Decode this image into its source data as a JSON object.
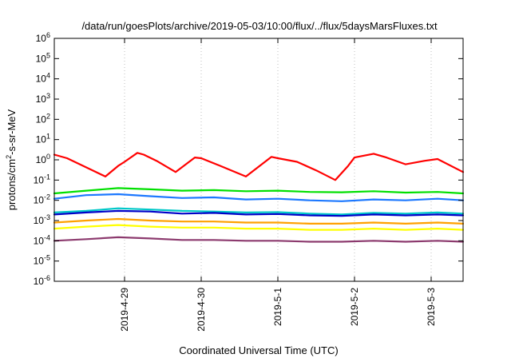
{
  "chart_data": {
    "type": "line",
    "title": "/data/run/goesPlots/archive/2019-05-03/10:00/flux/../flux/5daysMarsFluxes.txt",
    "xlabel": "Coordinated Universal Time (UTC)",
    "ylabel": "protons/cm2-s-sr-MeV",
    "ylabel_parts": [
      "protons/cm",
      "2",
      "-s-sr-MeV"
    ],
    "yscale": "log",
    "ylim": [
      1e-06,
      1000000.0
    ],
    "yticks": [
      {
        "base": "10",
        "exp": "6"
      },
      {
        "base": "10",
        "exp": "5"
      },
      {
        "base": "10",
        "exp": "4"
      },
      {
        "base": "10",
        "exp": "3"
      },
      {
        "base": "10",
        "exp": "2"
      },
      {
        "base": "10",
        "exp": "1"
      },
      {
        "base": "10",
        "exp": "0"
      },
      {
        "base": "10",
        "exp": "-1"
      },
      {
        "base": "10",
        "exp": "-2"
      },
      {
        "base": "10",
        "exp": "-3"
      },
      {
        "base": "10",
        "exp": "-4"
      },
      {
        "base": "10",
        "exp": "-5"
      },
      {
        "base": "10",
        "exp": "-6"
      }
    ],
    "xlim": [
      "2019-04-28 02:00",
      "2019-05-03 10:00"
    ],
    "xticks": [
      "2019-4-29",
      "2019-4-30",
      "2019-5-1",
      "2019-5-2",
      "2019-5-3"
    ],
    "grid": true,
    "legend": "none",
    "series": [
      {
        "color": "#ff0000",
        "x": [
          "2019-04-28 02:00",
          "2019-04-28 06:00",
          "2019-04-28 10:00",
          "2019-04-28 14:00",
          "2019-04-28 18:00",
          "2019-04-28 22:00",
          "2019-04-29 00:00",
          "2019-04-29 04:00",
          "2019-04-29 06:00",
          "2019-04-29 10:00",
          "2019-04-29 16:00",
          "2019-04-29 22:00",
          "2019-04-30 00:00",
          "2019-04-30 06:00",
          "2019-04-30 14:00",
          "2019-04-30 22:00",
          "2019-05-01 00:00",
          "2019-05-01 06:00",
          "2019-05-01 12:00",
          "2019-05-01 18:00",
          "2019-05-01 22:00",
          "2019-05-02 00:00",
          "2019-05-02 06:00",
          "2019-05-02 10:00",
          "2019-05-02 16:00",
          "2019-05-02 22:00",
          "2019-05-03 02:00",
          "2019-05-03 10:00"
        ],
        "values": [
          1.8,
          1.2,
          0.6,
          0.3,
          0.15,
          0.5,
          0.8,
          2.2,
          1.8,
          0.9,
          0.25,
          1.3,
          1.2,
          0.5,
          0.15,
          1.4,
          1.2,
          0.8,
          0.3,
          0.1,
          0.5,
          1.3,
          2.0,
          1.3,
          0.6,
          0.9,
          1.1,
          0.25
        ]
      },
      {
        "color": "#00e000",
        "x": [
          "2019-04-28 02:00",
          "2019-04-28 12:00",
          "2019-04-28 22:00",
          "2019-04-29 08:00",
          "2019-04-29 18:00",
          "2019-04-30 04:00",
          "2019-04-30 14:00",
          "2019-05-01 00:00",
          "2019-05-01 10:00",
          "2019-05-01 20:00",
          "2019-05-02 06:00",
          "2019-05-02 16:00",
          "2019-05-03 02:00",
          "2019-05-03 10:00"
        ],
        "values": [
          0.022,
          0.03,
          0.04,
          0.035,
          0.03,
          0.032,
          0.028,
          0.03,
          0.026,
          0.025,
          0.028,
          0.024,
          0.026,
          0.022
        ]
      },
      {
        "color": "#1c78ff",
        "x": [
          "2019-04-28 02:00",
          "2019-04-28 12:00",
          "2019-04-28 22:00",
          "2019-04-29 08:00",
          "2019-04-29 18:00",
          "2019-04-30 04:00",
          "2019-04-30 14:00",
          "2019-05-01 00:00",
          "2019-05-01 10:00",
          "2019-05-01 20:00",
          "2019-05-02 06:00",
          "2019-05-02 16:00",
          "2019-05-03 02:00",
          "2019-05-03 10:00"
        ],
        "values": [
          0.012,
          0.018,
          0.02,
          0.016,
          0.013,
          0.014,
          0.011,
          0.012,
          0.01,
          0.009,
          0.011,
          0.01,
          0.012,
          0.01
        ]
      },
      {
        "color": "#00c8c8",
        "x": [
          "2019-04-28 02:00",
          "2019-04-28 12:00",
          "2019-04-28 22:00",
          "2019-04-29 08:00",
          "2019-04-29 18:00",
          "2019-04-30 04:00",
          "2019-04-30 14:00",
          "2019-05-01 00:00",
          "2019-05-01 10:00",
          "2019-05-01 20:00",
          "2019-05-02 06:00",
          "2019-05-02 16:00",
          "2019-05-03 02:00",
          "2019-05-03 10:00"
        ],
        "values": [
          0.0025,
          0.003,
          0.004,
          0.0035,
          0.003,
          0.0028,
          0.0025,
          0.0026,
          0.0022,
          0.002,
          0.0024,
          0.0022,
          0.0025,
          0.0022
        ]
      },
      {
        "color": "#0000c8",
        "x": [
          "2019-04-28 02:00",
          "2019-04-28 12:00",
          "2019-04-28 22:00",
          "2019-04-29 08:00",
          "2019-04-29 18:00",
          "2019-04-30 04:00",
          "2019-04-30 14:00",
          "2019-05-01 00:00",
          "2019-05-01 10:00",
          "2019-05-01 20:00",
          "2019-05-02 06:00",
          "2019-05-02 16:00",
          "2019-05-03 02:00",
          "2019-05-03 10:00"
        ],
        "values": [
          0.002,
          0.0025,
          0.003,
          0.0028,
          0.0022,
          0.0024,
          0.002,
          0.0021,
          0.0018,
          0.0017,
          0.002,
          0.0018,
          0.002,
          0.0018
        ]
      },
      {
        "color": "#ffa000",
        "x": [
          "2019-04-28 02:00",
          "2019-04-28 12:00",
          "2019-04-28 22:00",
          "2019-04-29 08:00",
          "2019-04-29 18:00",
          "2019-04-30 04:00",
          "2019-04-30 14:00",
          "2019-05-01 00:00",
          "2019-05-01 10:00",
          "2019-05-01 20:00",
          "2019-05-02 06:00",
          "2019-05-02 16:00",
          "2019-05-03 02:00",
          "2019-05-03 10:00"
        ],
        "values": [
          0.0008,
          0.001,
          0.0012,
          0.001,
          0.0009,
          0.0009,
          0.0008,
          0.0008,
          0.0007,
          0.0007,
          0.0008,
          0.0007,
          0.0008,
          0.0007
        ]
      },
      {
        "color": "#ffff00",
        "x": [
          "2019-04-28 02:00",
          "2019-04-28 12:00",
          "2019-04-28 22:00",
          "2019-04-29 08:00",
          "2019-04-29 18:00",
          "2019-04-30 04:00",
          "2019-04-30 14:00",
          "2019-05-01 00:00",
          "2019-05-01 10:00",
          "2019-05-01 20:00",
          "2019-05-02 06:00",
          "2019-05-02 16:00",
          "2019-05-03 02:00",
          "2019-05-03 10:00"
        ],
        "values": [
          0.0004,
          0.0005,
          0.0006,
          0.0005,
          0.00045,
          0.00045,
          0.0004,
          0.0004,
          0.00035,
          0.00035,
          0.0004,
          0.00035,
          0.0004,
          0.00035
        ]
      },
      {
        "color": "#8c3a6e",
        "x": [
          "2019-04-28 02:00",
          "2019-04-28 12:00",
          "2019-04-28 22:00",
          "2019-04-29 08:00",
          "2019-04-29 18:00",
          "2019-04-30 04:00",
          "2019-04-30 14:00",
          "2019-05-01 00:00",
          "2019-05-01 10:00",
          "2019-05-01 20:00",
          "2019-05-02 06:00",
          "2019-05-02 16:00",
          "2019-05-03 02:00",
          "2019-05-03 10:00"
        ],
        "values": [
          0.0001,
          0.00012,
          0.00015,
          0.00013,
          0.00011,
          0.00011,
          0.0001,
          0.0001,
          9e-05,
          9e-05,
          0.0001,
          9e-05,
          0.0001,
          9e-05
        ]
      }
    ]
  }
}
